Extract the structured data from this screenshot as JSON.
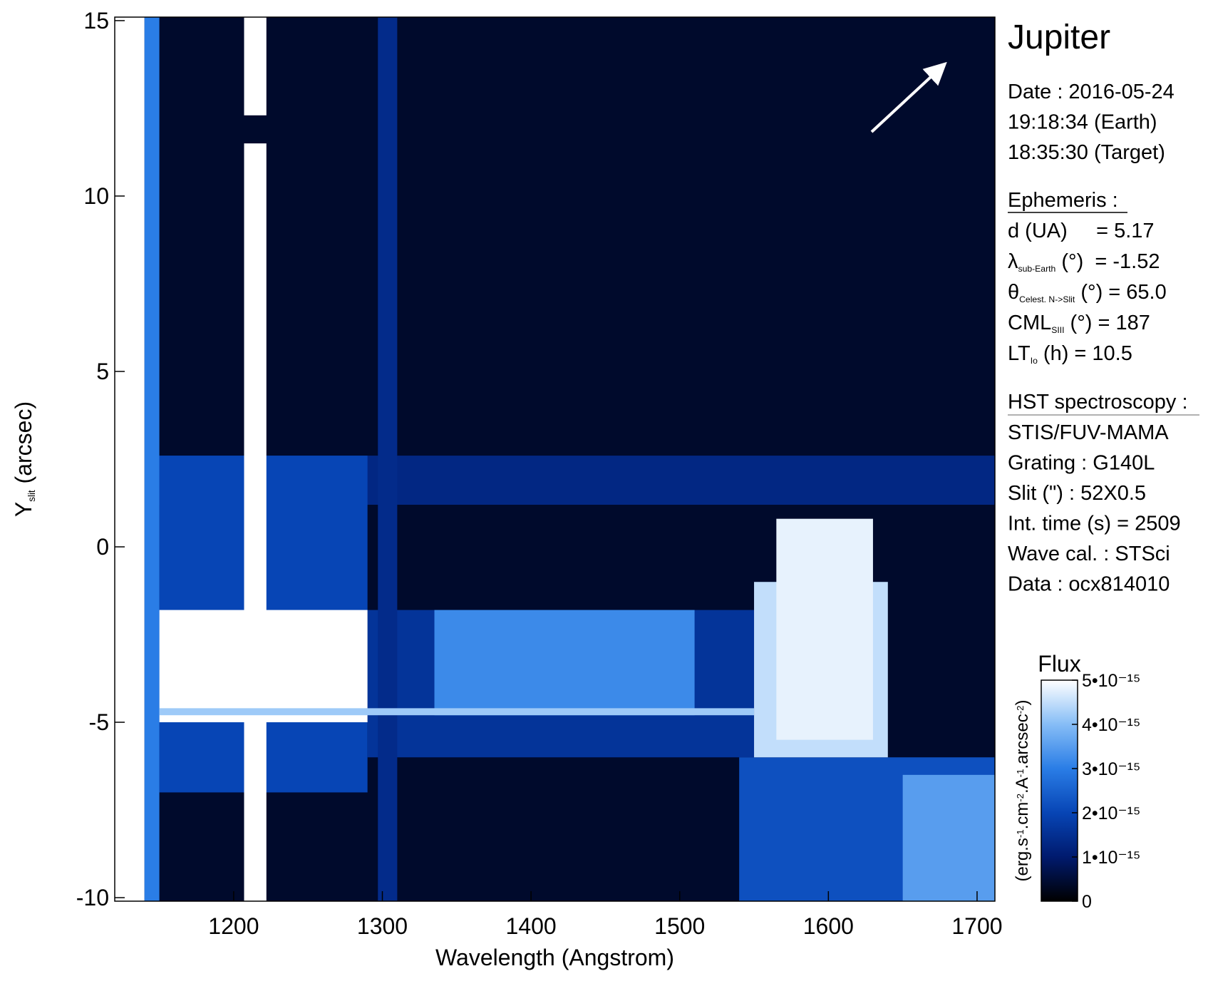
{
  "chart_data": {
    "type": "heatmap",
    "xlabel": "Wavelength (Angstrom)",
    "ylabel": [
      {
        "text": "Y"
      },
      {
        "sub": "slit"
      },
      {
        "text": " (arcsec)"
      }
    ],
    "xlim": [
      1120,
      1712
    ],
    "ylim": [
      -10.1,
      15.1
    ],
    "xticks": [
      1200,
      1300,
      1400,
      1500,
      1600,
      1700
    ],
    "yticks": [
      -10,
      -5,
      0,
      5,
      10,
      15
    ],
    "colorbar": {
      "title": "Flux",
      "label": [
        {
          "text": "(erg.s"
        },
        {
          "sup": "-1"
        },
        {
          "text": ".cm"
        },
        {
          "sup": "-2"
        },
        {
          "text": ".A"
        },
        {
          "sup": "-1"
        },
        {
          "text": ".arcsec"
        },
        {
          "sup": "-2"
        },
        {
          "text": ")"
        }
      ],
      "clim": [
        0,
        5e-15
      ],
      "ticks": [
        0,
        {
          "value": 1e-15,
          "label": "1•10⁻¹⁵"
        },
        {
          "value": 2e-15,
          "label": "2•10⁻¹⁵"
        },
        {
          "value": 3e-15,
          "label": "3•10⁻¹⁵"
        },
        {
          "value": 4e-15,
          "label": "4•10⁻¹⁵"
        },
        {
          "value": 5e-15,
          "label": "5•10⁻¹⁵"
        }
      ],
      "colormap": [
        "#000000",
        "#001a6e",
        "#0745b5",
        "#2a7de6",
        "#86bdf6",
        "#ffffff"
      ]
    },
    "regions": [
      {
        "x": [
          1120,
          1712
        ],
        "y": [
          -10.1,
          15.1
        ],
        "flux": 4e-16
      },
      {
        "x": [
          1150,
          1712
        ],
        "y": [
          1.2,
          2.6
        ],
        "flux": 1.3e-15
      },
      {
        "x": [
          1150,
          1290
        ],
        "y": [
          -7,
          2.6
        ],
        "flux": 2e-15
      },
      {
        "x": [
          1290,
          1550
        ],
        "y": [
          -6,
          -1.8
        ],
        "flux": 1.6e-15
      },
      {
        "x": [
          1335,
          1510
        ],
        "y": [
          -4.8,
          -1.8
        ],
        "flux": 3.2e-15
      },
      {
        "x": [
          1150,
          1290
        ],
        "y": [
          -5,
          -1.8
        ],
        "flux": 5e-15
      },
      {
        "x": [
          1540,
          1712
        ],
        "y": [
          -10.1,
          -6
        ],
        "flux": 2.2e-15
      },
      {
        "x": [
          1650,
          1712
        ],
        "y": [
          -10.1,
          -6.5
        ],
        "flux": 3.5e-15
      },
      {
        "x": [
          1550,
          1640
        ],
        "y": [
          -6,
          -1
        ],
        "flux": 4.5e-15
      },
      {
        "x": [
          1565,
          1630
        ],
        "y": [
          -5.5,
          0.8
        ],
        "flux": 4.8e-15
      },
      {
        "x": [
          1297,
          1310
        ],
        "y": [
          -10.1,
          15.1
        ],
        "flux": 1.4e-15
      },
      {
        "x": [
          1207,
          1222
        ],
        "y": [
          -10.1,
          11.5
        ],
        "flux": 5e-15
      },
      {
        "x": [
          1207,
          1222
        ],
        "y": [
          12.3,
          15.1
        ],
        "flux": 5e-15
      },
      {
        "x": [
          1120,
          1140
        ],
        "y": [
          -10.1,
          15.1
        ],
        "flux": 5e-15
      },
      {
        "x": [
          1140,
          1150
        ],
        "y": [
          -10.1,
          15.1
        ],
        "flux": 3e-15
      },
      {
        "x": [
          1150,
          1550
        ],
        "y": [
          -4.8,
          -4.6
        ],
        "flux": 4.2e-15
      }
    ]
  },
  "info": {
    "target": "Jupiter",
    "date_lines": [
      "Date : 2016-05-24",
      "19:18:34 (Earth)",
      "18:35:30 (Target)"
    ],
    "ephemeris_title": "Ephemeris :",
    "ephemeris": [
      [
        {
          "text": "d (UA)     = 5.17"
        }
      ],
      [
        {
          "text": "λ"
        },
        {
          "sub": "sub-Earth"
        },
        {
          "text": " (°)  = -1.52"
        }
      ],
      [
        {
          "text": "θ"
        },
        {
          "sub": "Celest. N->Slit"
        },
        {
          "text": " (°) = 65.0"
        }
      ],
      [
        {
          "text": "CML"
        },
        {
          "sub": "SIII"
        },
        {
          "text": " (°) = 187"
        }
      ],
      [
        {
          "text": "LT"
        },
        {
          "sub": "Io"
        },
        {
          "text": " (h) = 10.5"
        }
      ]
    ],
    "hst_title": "HST spectroscopy :",
    "hst": [
      "STIS/FUV-MAMA",
      "Grating : G140L",
      "Slit (\") : 52X0.5",
      "Int. time (s) = 2509",
      "Wave cal. : STSci",
      "Data : ocx814010"
    ]
  }
}
